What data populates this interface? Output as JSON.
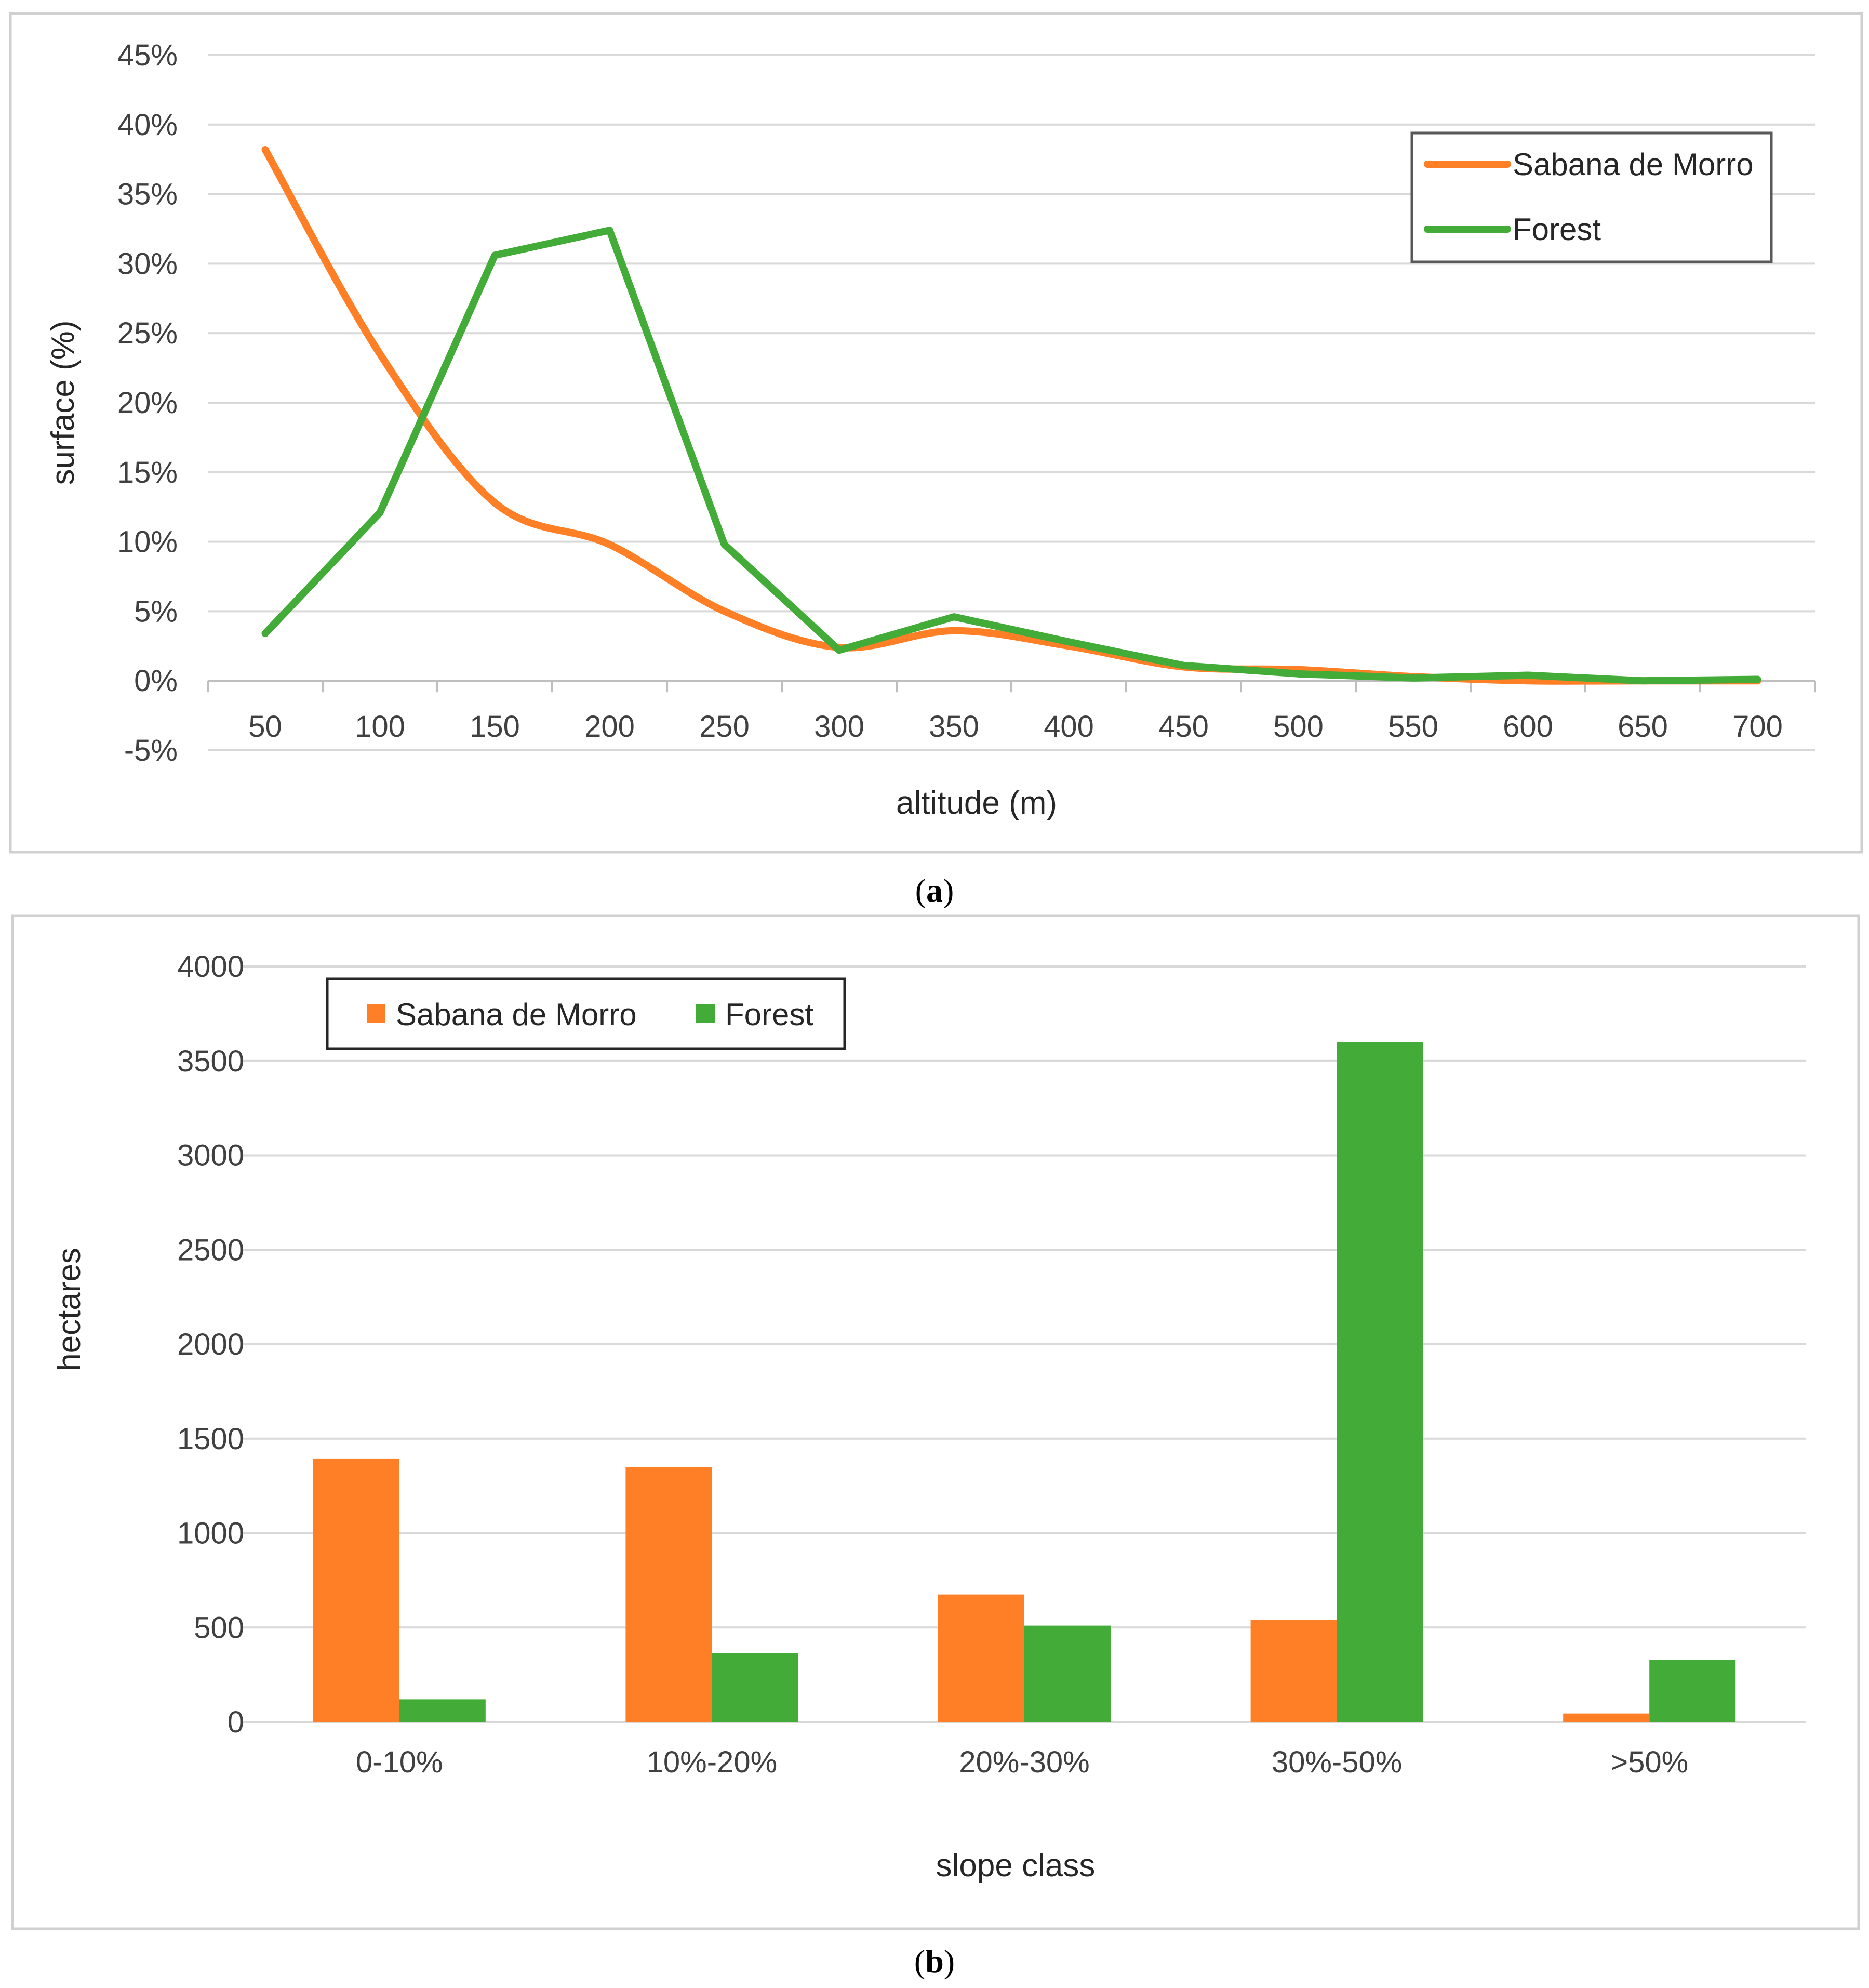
{
  "colors": {
    "sabana": "#FF7F27",
    "forest": "#43AC39",
    "grid": "#D9D9D9",
    "frame": "#D0D0D0"
  },
  "chart_data": [
    {
      "type": "line",
      "x": [
        50,
        100,
        150,
        200,
        250,
        300,
        350,
        400,
        450,
        500,
        550,
        600,
        650,
        700
      ],
      "x_labels": [
        "50",
        "100",
        "150",
        "200",
        "250",
        "300",
        "350",
        "400",
        "450",
        "500",
        "550",
        "600",
        "650",
        "700"
      ],
      "series": [
        {
          "name": "Sabana de Morro",
          "smooth": true,
          "values": [
            38.2,
            23.5,
            12.8,
            9.8,
            5.0,
            2.4,
            3.6,
            2.5,
            1.0,
            0.8,
            0.3,
            0.0,
            0.0,
            0.0
          ]
        },
        {
          "name": "Forest",
          "smooth": false,
          "values": [
            3.4,
            12.1,
            30.6,
            32.4,
            9.8,
            2.2,
            4.6,
            2.8,
            1.1,
            0.5,
            0.2,
            0.4,
            0.0,
            0.1
          ]
        }
      ],
      "ylim": [
        -5,
        45
      ],
      "y_ticks": [
        -5,
        0,
        5,
        10,
        15,
        20,
        25,
        30,
        35,
        40,
        45
      ],
      "y_tick_labels": [
        "-5%",
        "0%",
        "5%",
        "10%",
        "15%",
        "20%",
        "25%",
        "30%",
        "35%",
        "40%",
        "45%"
      ],
      "xlabel": "altitude (m)",
      "ylabel": "surface (%)",
      "legend": [
        "Sabana de Morro",
        "Forest"
      ],
      "legend_position": "top-right",
      "grid": true
    },
    {
      "type": "bar",
      "categories": [
        "0-10%",
        "10%-20%",
        "20%-30%",
        "30%-50%",
        ">50%"
      ],
      "series": [
        {
          "name": "Sabana de Morro",
          "values": [
            1395,
            1350,
            675,
            540,
            45
          ]
        },
        {
          "name": "Forest",
          "values": [
            120,
            365,
            510,
            3600,
            330
          ]
        }
      ],
      "ylim": [
        0,
        4000
      ],
      "y_ticks": [
        0,
        500,
        1000,
        1500,
        2000,
        2500,
        3000,
        3500,
        4000
      ],
      "y_tick_labels": [
        "0",
        "500",
        "1000",
        "1500",
        "2000",
        "2500",
        "3000",
        "3500",
        "4000"
      ],
      "xlabel": "slope class",
      "ylabel": "hectares",
      "legend": [
        "Sabana de Morro",
        "Forest"
      ],
      "legend_position": "top-left",
      "grid": true
    }
  ],
  "captions": {
    "a": {
      "open": "(",
      "letter": "a",
      "close": ")"
    },
    "b": {
      "open": "(",
      "letter": "b",
      "close": ")"
    }
  }
}
